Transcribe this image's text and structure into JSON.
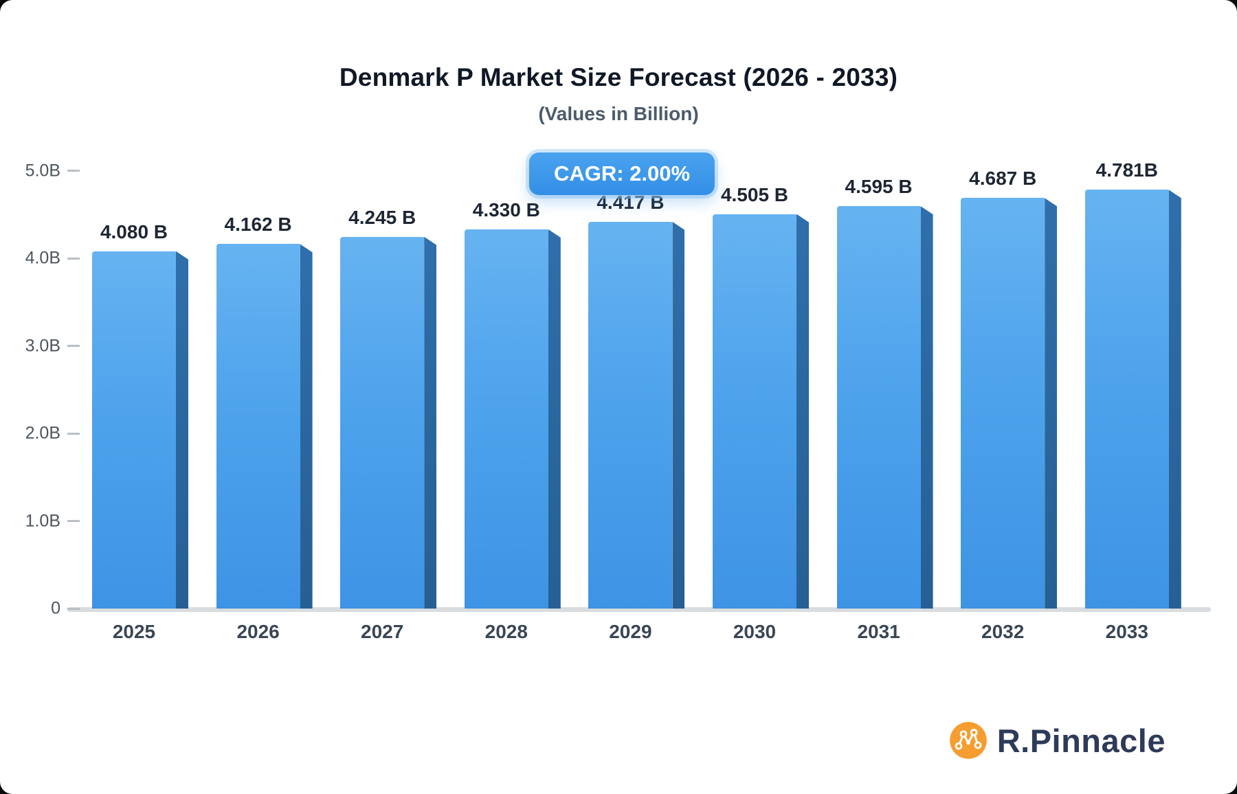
{
  "chart_data": {
    "type": "bar",
    "title": "Denmark P Market Size Forecast (2026 - 2033)",
    "subtitle": "(Values in Billion)",
    "categories": [
      "2025",
      "2026",
      "2027",
      "2028",
      "2029",
      "2030",
      "2031",
      "2032",
      "2033"
    ],
    "values": [
      4.08,
      4.162,
      4.245,
      4.33,
      4.417,
      4.505,
      4.595,
      4.687,
      4.781
    ],
    "value_labels": [
      "4.080 B",
      "4.162 B",
      "4.245 B",
      "4.330 B",
      "4.417 B",
      "4.505 B",
      "4.595 B",
      "4.687 B",
      "4.781B"
    ],
    "xlabel": "",
    "ylabel": "",
    "ylim": [
      0,
      5.0
    ],
    "yticks": [
      0,
      1.0,
      2.0,
      3.0,
      4.0,
      5.0
    ],
    "ytick_labels": [
      "0",
      "1.0B",
      "2.0B",
      "3.0B",
      "4.0B",
      "5.0B"
    ],
    "grid": false,
    "legend": false,
    "annotation": "CAGR: 2.00%"
  },
  "logo": {
    "text": "R.Pinnacle"
  },
  "colors": {
    "bar_front_top": "#66B3F1",
    "bar_front_bottom": "#3E93E5",
    "bar_side": "#2A669F",
    "badge_bg": "#3B97EA",
    "axis_line": "#D9DCDF",
    "logo_icon": "#F59D31",
    "logo_text": "#2E3A59"
  }
}
